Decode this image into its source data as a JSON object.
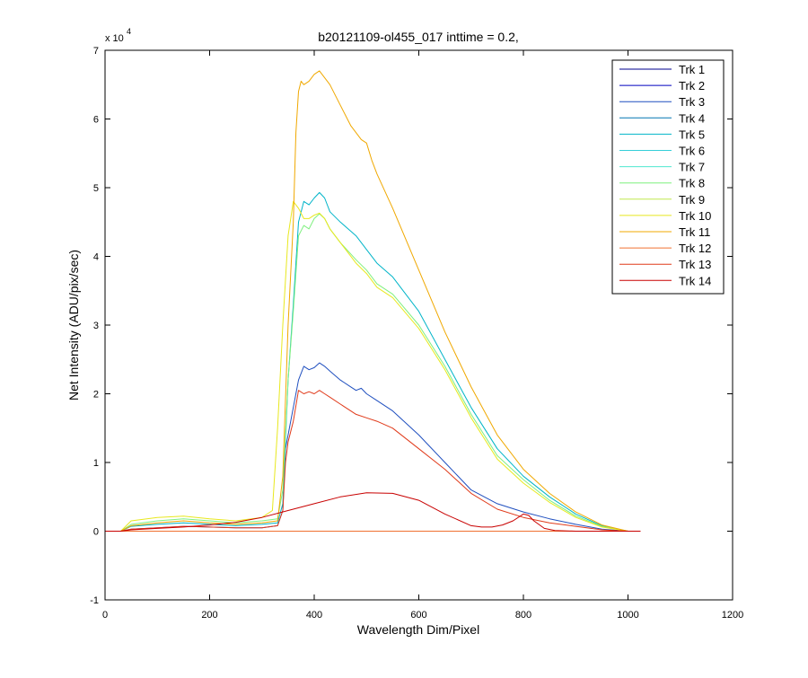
{
  "chart_data": {
    "type": "line",
    "title": "b20121109-ol455_017 inttime = 0.2,",
    "xlabel": "Wavelength Dim/Pixel",
    "ylabel": "Net Intensity (ADU/pix/sec)",
    "xlim": [
      0,
      1200
    ],
    "ylim": [
      -10000,
      70000
    ],
    "x_ticks": [
      0,
      200,
      400,
      600,
      800,
      1000,
      1200
    ],
    "y_ticks": [
      -1,
      0,
      1,
      2,
      3,
      4,
      5,
      6,
      7
    ],
    "y_exponent": {
      "base": "x 10",
      "power": "4",
      "multiplier": 10000
    },
    "legend_position": "top-right",
    "series": [
      {
        "name": "Trk 1",
        "color": "#00008f",
        "x": [
          0,
          1024
        ],
        "y": [
          0,
          0
        ]
      },
      {
        "name": "Trk 2",
        "color": "#0000bf",
        "x": [
          0,
          1024
        ],
        "y": [
          0,
          0
        ]
      },
      {
        "name": "Trk 3",
        "color": "#1f4fbf",
        "x": [
          0,
          30,
          50,
          100,
          150,
          200,
          250,
          300,
          330,
          340,
          345,
          350,
          360,
          370,
          380,
          390,
          400,
          410,
          420,
          430,
          450,
          470,
          480,
          490,
          500,
          520,
          550,
          600,
          650,
          700,
          750,
          800,
          850,
          900,
          950,
          1000,
          1024
        ],
        "y": [
          0,
          0,
          300,
          500,
          700,
          600,
          500,
          500,
          800,
          3000,
          12000,
          14000,
          18000,
          22000,
          24000,
          23500,
          23800,
          24500,
          24000,
          23300,
          22000,
          21000,
          20500,
          20800,
          20000,
          19000,
          17500,
          14000,
          10000,
          6000,
          4000,
          2800,
          1800,
          1000,
          300,
          0,
          0
        ]
      },
      {
        "name": "Trk 4",
        "color": "#0076b2",
        "x": [
          0,
          1024
        ],
        "y": [
          0,
          0
        ]
      },
      {
        "name": "Trk 5",
        "color": "#00b4c8",
        "x": [
          0,
          30,
          50,
          100,
          150,
          200,
          250,
          300,
          330,
          340,
          350,
          360,
          370,
          380,
          390,
          400,
          410,
          420,
          430,
          450,
          480,
          500,
          520,
          550,
          600,
          650,
          700,
          750,
          800,
          850,
          900,
          950,
          1000,
          1024
        ],
        "y": [
          0,
          0,
          700,
          1000,
          1200,
          1000,
          800,
          1000,
          1200,
          4000,
          22000,
          33000,
          45000,
          48000,
          47500,
          48500,
          49300,
          48500,
          46500,
          45000,
          43000,
          41000,
          39000,
          37000,
          32000,
          25000,
          18000,
          12000,
          8000,
          5000,
          2500,
          800,
          0,
          0
        ]
      },
      {
        "name": "Trk 6",
        "color": "#35cfd9",
        "x": [
          0,
          1024
        ],
        "y": [
          0,
          0
        ]
      },
      {
        "name": "Trk 7",
        "color": "#4fe8cf",
        "x": [
          0,
          1024
        ],
        "y": [
          0,
          0
        ]
      },
      {
        "name": "Trk 8",
        "color": "#7ff07f",
        "x": [
          0,
          30,
          50,
          100,
          150,
          200,
          250,
          300,
          330,
          340,
          350,
          360,
          370,
          380,
          390,
          400,
          410,
          420,
          430,
          450,
          480,
          500,
          520,
          550,
          600,
          650,
          700,
          750,
          800,
          850,
          900,
          950,
          1000,
          1024
        ],
        "y": [
          0,
          0,
          1000,
          1500,
          1800,
          1500,
          1200,
          1500,
          1800,
          6000,
          22000,
          32000,
          43000,
          44500,
          44000,
          45500,
          46200,
          45500,
          44000,
          42000,
          39500,
          38000,
          36000,
          34500,
          30000,
          24000,
          17000,
          11000,
          7500,
          4500,
          2200,
          700,
          0,
          0
        ]
      },
      {
        "name": "Trk 9",
        "color": "#bfe84f",
        "x": [
          0,
          1024
        ],
        "y": [
          0,
          0
        ]
      },
      {
        "name": "Trk 10",
        "color": "#e8e81f",
        "x": [
          0,
          30,
          50,
          100,
          150,
          200,
          250,
          300,
          320,
          330,
          340,
          350,
          360,
          370,
          380,
          390,
          400,
          410,
          420,
          430,
          450,
          480,
          500,
          520,
          550,
          600,
          650,
          700,
          750,
          800,
          850,
          900,
          950,
          1000,
          1024
        ],
        "y": [
          0,
          0,
          1500,
          2000,
          2200,
          1800,
          1500,
          2000,
          3000,
          15000,
          30000,
          43000,
          48000,
          47000,
          45500,
          45500,
          46000,
          46300,
          45500,
          44000,
          42000,
          39000,
          37500,
          35500,
          34000,
          29500,
          23500,
          16500,
          10500,
          7000,
          4200,
          2000,
          600,
          0,
          0
        ]
      },
      {
        "name": "Trk 11",
        "color": "#f0a800",
        "x": [
          0,
          30,
          50,
          100,
          150,
          200,
          250,
          300,
          330,
          340,
          350,
          360,
          365,
          370,
          375,
          380,
          390,
          400,
          410,
          420,
          430,
          450,
          470,
          490,
          500,
          510,
          520,
          550,
          600,
          650,
          700,
          750,
          800,
          850,
          900,
          950,
          1000,
          1024
        ],
        "y": [
          0,
          0,
          800,
          1200,
          1500,
          1200,
          1000,
          1200,
          1500,
          8000,
          30000,
          45000,
          58000,
          64000,
          65500,
          65000,
          65500,
          66500,
          67000,
          66000,
          65000,
          62000,
          59000,
          57000,
          56500,
          54000,
          52000,
          47000,
          38000,
          29000,
          21000,
          14000,
          9000,
          5500,
          2800,
          900,
          0,
          0
        ]
      },
      {
        "name": "Trk 12",
        "color": "#f07030",
        "x": [
          0,
          1024
        ],
        "y": [
          0,
          0
        ]
      },
      {
        "name": "Trk 13",
        "color": "#e03a1a",
        "x": [
          0,
          30,
          50,
          100,
          150,
          200,
          250,
          300,
          330,
          340,
          345,
          350,
          360,
          370,
          380,
          390,
          400,
          410,
          420,
          430,
          450,
          480,
          500,
          520,
          550,
          600,
          650,
          700,
          750,
          800,
          850,
          900,
          950,
          1000,
          1024
        ],
        "y": [
          0,
          0,
          300,
          500,
          700,
          600,
          500,
          500,
          800,
          3000,
          10000,
          13000,
          16000,
          20500,
          20000,
          20300,
          20000,
          20500,
          20000,
          19500,
          18500,
          17000,
          16500,
          16000,
          15000,
          12000,
          9000,
          5500,
          3200,
          2000,
          1200,
          700,
          200,
          0,
          0
        ]
      },
      {
        "name": "Trk 14",
        "color": "#c80000",
        "x": [
          0,
          30,
          50,
          100,
          150,
          200,
          250,
          300,
          350,
          400,
          450,
          500,
          550,
          600,
          650,
          700,
          720,
          740,
          760,
          780,
          800,
          810,
          820,
          840,
          860,
          900,
          950,
          1000,
          1024
        ],
        "y": [
          0,
          0,
          200,
          400,
          600,
          900,
          1300,
          2000,
          3000,
          4000,
          5000,
          5600,
          5500,
          4500,
          2500,
          800,
          600,
          600,
          900,
          1500,
          2500,
          2300,
          1500,
          400,
          100,
          0,
          0,
          0,
          0
        ]
      }
    ]
  }
}
